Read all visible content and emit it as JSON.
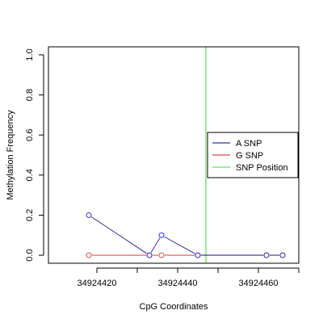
{
  "chart_data": {
    "type": "line",
    "xlabel": "CpG Coordinates",
    "ylabel": "Methylation Frequency",
    "xlim": [
      34924408,
      34924470
    ],
    "ylim": [
      0,
      1
    ],
    "x_ticks": [
      34924420,
      34924440,
      34924460
    ],
    "y_ticks": [
      0.0,
      0.2,
      0.4,
      0.6,
      0.8,
      1.0
    ],
    "x_tick_labels": [
      "34924420",
      "34924440",
      "34924460"
    ],
    "y_tick_labels": [
      "0.0",
      "0.2",
      "0.4",
      "0.6",
      "0.8",
      "1.0"
    ],
    "grid": false,
    "legend_position": "right",
    "series": [
      {
        "name": "A SNP",
        "color": "#00008B",
        "marker_color": "#3333CC",
        "x": [
          34924418,
          34924433,
          34924436,
          34924445,
          34924462,
          34924466
        ],
        "y": [
          0.2,
          0.0,
          0.1,
          0.0,
          0.0,
          0.0
        ]
      },
      {
        "name": "G SNP",
        "color": "#CC2222",
        "marker_color": "#DD4444",
        "x": [
          34924418,
          34924433,
          34924436,
          34924445,
          34924462,
          34924466
        ],
        "y": [
          0.0,
          0.0,
          0.0,
          0.0,
          0.0,
          0.0
        ]
      }
    ],
    "snp_position": {
      "name": "SNP Position",
      "color": "#33DD33",
      "x": 34924447
    }
  }
}
